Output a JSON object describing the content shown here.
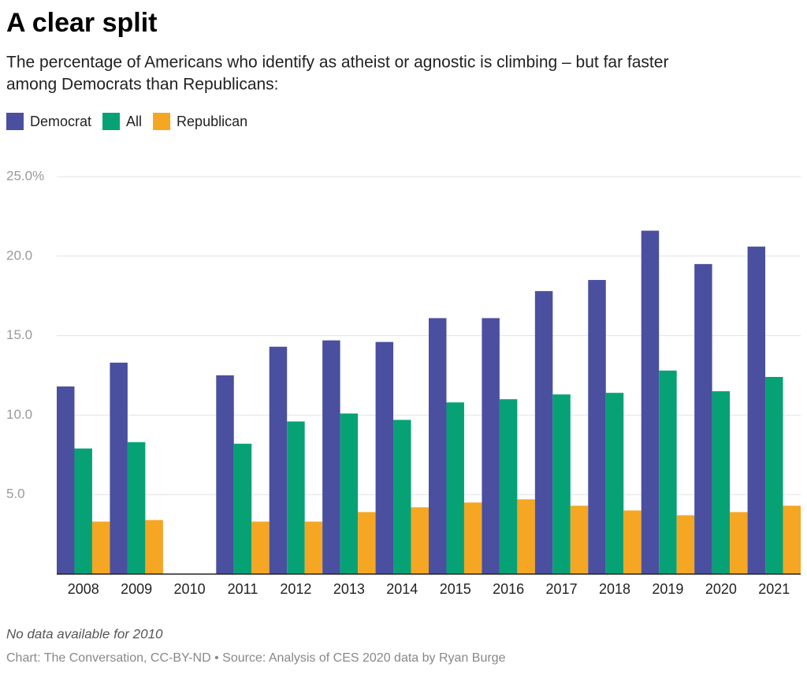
{
  "chart_data": {
    "type": "bar",
    "title": "A clear split",
    "subtitle_lines": [
      "The percentage of Americans who identify as atheist or agnostic is climbing – but far faster",
      "among Democrats than Republicans:"
    ],
    "categories": [
      "2008",
      "2009",
      "2010",
      "2011",
      "2012",
      "2013",
      "2014",
      "2015",
      "2016",
      "2017",
      "2018",
      "2019",
      "2020",
      "2021"
    ],
    "series": [
      {
        "name": "Democrat",
        "color": "#4a4f9f",
        "values": [
          11.8,
          13.3,
          null,
          12.5,
          14.3,
          14.7,
          14.6,
          16.1,
          16.1,
          17.8,
          18.5,
          21.6,
          19.5,
          20.6
        ]
      },
      {
        "name": "All",
        "color": "#06a275",
        "values": [
          7.9,
          8.3,
          null,
          8.2,
          9.6,
          10.1,
          9.7,
          10.8,
          11.0,
          11.3,
          11.4,
          12.8,
          11.5,
          12.4
        ]
      },
      {
        "name": "Republican",
        "color": "#f5a623",
        "values": [
          3.3,
          3.4,
          null,
          3.3,
          3.3,
          3.9,
          4.2,
          4.5,
          4.7,
          4.3,
          4.0,
          3.7,
          3.9,
          4.3
        ]
      }
    ],
    "ylim": [
      0,
      25
    ],
    "yticks": [
      {
        "value": 5,
        "label": "5.0"
      },
      {
        "value": 10,
        "label": "10.0"
      },
      {
        "value": 15,
        "label": "15.0"
      },
      {
        "value": 20,
        "label": "20.0"
      },
      {
        "value": 25,
        "label": "25.0%"
      }
    ],
    "grid": true,
    "note": "No data available for 2010",
    "source": "Chart: The Conversation, CC-BY-ND • Source: Analysis of CES 2020 data by Ryan Burge"
  }
}
